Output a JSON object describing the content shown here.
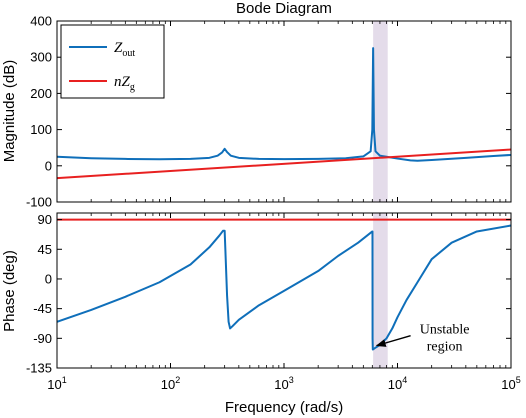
{
  "chart_data": {
    "type": "line",
    "title": "Bode Diagram",
    "xlabel": "Frequency  (rad/s)",
    "x_scale": "log",
    "xlim": [
      10,
      100000
    ],
    "x_ticks": [
      10,
      100,
      1000,
      10000,
      100000
    ],
    "x_tick_labels": [
      {
        "base": "10",
        "exp": "1"
      },
      {
        "base": "10",
        "exp": "2"
      },
      {
        "base": "10",
        "exp": "3"
      },
      {
        "base": "10",
        "exp": "4"
      },
      {
        "base": "10",
        "exp": "5"
      }
    ],
    "highlight_band": {
      "x_range": [
        6100,
        8200
      ],
      "color": "#e4dcea"
    },
    "legend": {
      "placement": "top-left",
      "panel": "magnitude",
      "entries": [
        {
          "series": "Zout",
          "base": "Z",
          "sub": "out",
          "pre": ""
        },
        {
          "series": "nZg",
          "base": "Z",
          "sub": "g",
          "pre": "n"
        }
      ]
    },
    "panels": [
      {
        "id": "magnitude",
        "ylabel": "Magnitude (dB)",
        "ylim": [
          -100,
          400
        ],
        "y_ticks": [
          -100,
          0,
          100,
          200,
          300,
          400
        ],
        "series": [
          {
            "name": "Zout",
            "color": "#0f6fba",
            "points": [
              [
                10,
                25
              ],
              [
                20,
                21
              ],
              [
                40,
                19
              ],
              [
                80,
                18
              ],
              [
                150,
                19
              ],
              [
                220,
                22
              ],
              [
                260,
                28
              ],
              [
                285,
                37
              ],
              [
                300,
                47
              ],
              [
                315,
                38
              ],
              [
                340,
                28
              ],
              [
                400,
                22
              ],
              [
                600,
                19
              ],
              [
                1000,
                18.5
              ],
              [
                2000,
                19
              ],
              [
                3500,
                21
              ],
              [
                5000,
                26
              ],
              [
                5800,
                40
              ],
              [
                6000,
                100
              ],
              [
                6100,
                325
              ],
              [
                6200,
                100
              ],
              [
                6400,
                40
              ],
              [
                7000,
                28
              ],
              [
                8000,
                25
              ],
              [
                10000,
                20
              ],
              [
                13000,
                15
              ],
              [
                15000,
                14
              ],
              [
                20000,
                16
              ],
              [
                40000,
                22
              ],
              [
                70000,
                27
              ],
              [
                100000,
                30
              ]
            ]
          },
          {
            "name": "nZg",
            "color": "#e82020",
            "points": [
              [
                10,
                -34
              ],
              [
                100000,
                45
              ]
            ]
          }
        ]
      },
      {
        "id": "phase",
        "ylabel": "Phase (deg)",
        "ylim": [
          -135,
          100
        ],
        "y_ticks": [
          -135,
          -90,
          -45,
          0,
          45,
          90
        ],
        "series": [
          {
            "name": "Zout",
            "color": "#0f6fba",
            "points": [
              [
                10,
                -65
              ],
              [
                20,
                -47
              ],
              [
                40,
                -27
              ],
              [
                80,
                -5
              ],
              [
                150,
                22
              ],
              [
                220,
                48
              ],
              [
                270,
                66
              ],
              [
                290,
                73
              ],
              [
                300,
                73
              ],
              [
                305,
                40
              ],
              [
                315,
                -25
              ],
              [
                325,
                -65
              ],
              [
                335,
                -75
              ],
              [
                350,
                -72
              ],
              [
                400,
                -62
              ],
              [
                600,
                -40
              ],
              [
                1000,
                -18
              ],
              [
                2000,
                12
              ],
              [
                3000,
                35
              ],
              [
                4500,
                55
              ],
              [
                6000,
                72
              ],
              [
                6020,
                72
              ],
              [
                6030,
                -90
              ],
              [
                6060,
                -107
              ],
              [
                6300,
                -105
              ],
              [
                7000,
                -100
              ],
              [
                8000,
                -90
              ],
              [
                9000,
                -75
              ],
              [
                10000,
                -58
              ],
              [
                12000,
                -32
              ],
              [
                15000,
                -5
              ],
              [
                20000,
                30
              ],
              [
                30000,
                55
              ],
              [
                50000,
                72
              ],
              [
                100000,
                81
              ]
            ]
          },
          {
            "name": "nZg",
            "color": "#e82020",
            "points": [
              [
                10,
                90
              ],
              [
                100000,
                90
              ]
            ]
          }
        ]
      }
    ],
    "annotations": [
      {
        "panel": "phase",
        "text_lines": [
          "Unstable",
          "region"
        ],
        "text_at": [
          26000,
          -83
        ],
        "arrow_to": [
          6300,
          -101
        ]
      }
    ]
  }
}
